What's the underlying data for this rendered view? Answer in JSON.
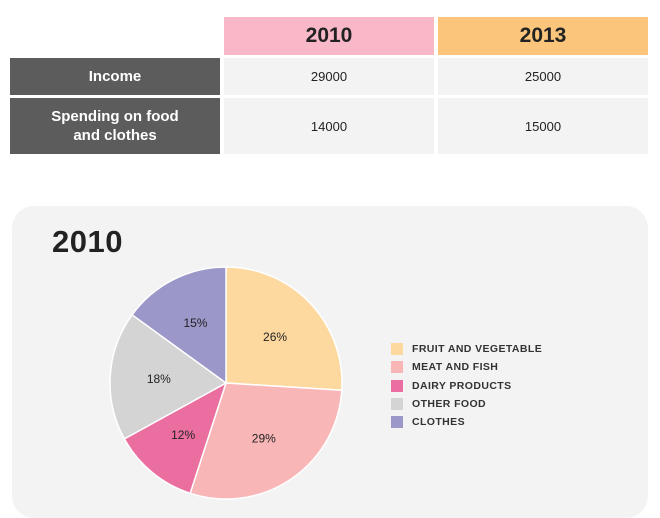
{
  "table": {
    "years": [
      "2010",
      "2013"
    ],
    "year_colors": [
      "#f9b8c8",
      "#fbc57c"
    ],
    "rows": [
      {
        "label_lines": [
          "Income"
        ],
        "values": [
          "29000",
          "25000"
        ]
      },
      {
        "label_lines": [
          "Spending on food",
          "and clothes"
        ],
        "values": [
          "14000",
          "15000"
        ]
      }
    ]
  },
  "chart_data": {
    "type": "pie",
    "title": "2010",
    "categories": [
      "FRUIT AND VEGETABLE",
      "MEAT AND FISH",
      "DAIRY PRODUCTS",
      "OTHER FOOD",
      "CLOTHES"
    ],
    "values": [
      26,
      29,
      12,
      18,
      15
    ],
    "value_labels": [
      "26%",
      "29%",
      "12%",
      "18%",
      "15%"
    ],
    "colors": [
      "#fdd9a0",
      "#f9b6b6",
      "#ea6fa0",
      "#d4d4d4",
      "#9b97c8"
    ],
    "legend_position": "right",
    "start_angle": "12 o'clock, clockwise"
  }
}
